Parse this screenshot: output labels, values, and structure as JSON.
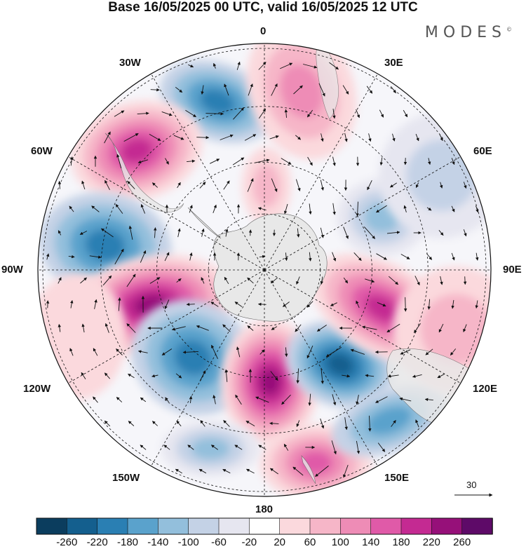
{
  "header": {
    "title": "Base 16/05/2025 00 UTC, valid 16/05/2025 12 UTC",
    "brand": "MODES",
    "brand_mark": "©"
  },
  "map": {
    "projection": "south-polar-stereographic",
    "lon_labels": {
      "n0": "0",
      "n30e": "30E",
      "n60e": "60E",
      "n90e": "90E",
      "n120e": "120E",
      "n150e": "150E",
      "n180": "180",
      "n150w": "150W",
      "n120w": "120W",
      "n90w": "90W",
      "n60w": "60W",
      "n30w": "30W"
    },
    "reference_vector": "30",
    "land_color": "#e8e8e8"
  },
  "colorbar": {
    "ticks": [
      "-260",
      "-220",
      "-180",
      "-140",
      "-100",
      "-60",
      "-20",
      "20",
      "60",
      "100",
      "140",
      "180",
      "220",
      "260"
    ],
    "colors": [
      "#0b3d5e",
      "#145f8e",
      "#2a7fb3",
      "#5aa2cc",
      "#93bfdc",
      "#c4d2e6",
      "#e6e6f0",
      "#ffffff",
      "#fbd9dd",
      "#f6b6c8",
      "#ee8cb6",
      "#e05aa8",
      "#c42a92",
      "#961079",
      "#5e0a68"
    ]
  },
  "chart_data": {
    "type": "heatmap",
    "title": "Base 16/05/2025 00 UTC, valid 16/05/2025 12 UTC",
    "color_scale_levels": [
      -260,
      -220,
      -180,
      -140,
      -100,
      -60,
      -20,
      20,
      60,
      100,
      140,
      180,
      220,
      260
    ],
    "anomaly_centers": [
      {
        "lon_lat_region": "near 30W, 50S",
        "sign": "negative",
        "peak": -180
      },
      {
        "lon_lat_region": "near 55W, 45S",
        "sign": "positive",
        "peak": 220
      },
      {
        "lon_lat_region": "near 80W, 45S",
        "sign": "negative",
        "peak": -140
      },
      {
        "lon_lat_region": "near 105W, 55S",
        "sign": "positive",
        "peak": 260
      },
      {
        "lon_lat_region": "near 130W, 55S",
        "sign": "negative",
        "peak": -180
      },
      {
        "lon_lat_region": "near 175E, 60S",
        "sign": "positive",
        "peak": 260
      },
      {
        "lon_lat_region": "near 155E, 45S",
        "sign": "positive",
        "peak": 140
      },
      {
        "lon_lat_region": "near 140E, 55S",
        "sign": "negative",
        "peak": -220
      },
      {
        "lon_lat_region": "near 110E, 55S",
        "sign": "positive",
        "peak": 220
      },
      {
        "lon_lat_region": "near 65E, 50S",
        "sign": "negative",
        "peak": -100
      },
      {
        "lon_lat_region": "near 10E, 45S",
        "sign": "positive",
        "peak": 140
      },
      {
        "lon_lat_region": "near 5E, 75S",
        "sign": "positive",
        "peak": 100
      },
      {
        "lon_lat_region": "near 120E, 35S",
        "sign": "negative",
        "peak": -140
      }
    ]
  }
}
